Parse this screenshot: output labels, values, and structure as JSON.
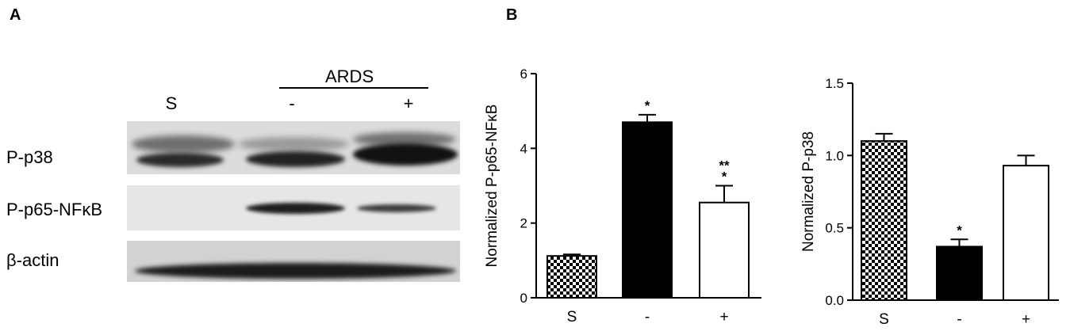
{
  "panels": {
    "a": "A",
    "b": "B"
  },
  "blot": {
    "group_label": "ARDS",
    "lanes": [
      "S",
      "-",
      "+"
    ],
    "rows": [
      "P-p38",
      "P-p65-NFκB",
      "β-actin"
    ]
  },
  "colors": {
    "bar_edge": "#000000",
    "bar_solid": "#000000",
    "bar_empty": "#ffffff"
  },
  "chart_data": [
    {
      "type": "bar",
      "categories": [
        "S",
        "-",
        "+"
      ],
      "values": [
        1.12,
        4.7,
        2.55
      ],
      "errors": [
        0.04,
        0.2,
        0.45
      ],
      "annotations": [
        "",
        "*",
        "**\n*"
      ],
      "fills": [
        "checker",
        "solid",
        "empty"
      ],
      "title": "",
      "xlabel": "",
      "ylabel": "Normalized P-p65-NFκB",
      "ylim": [
        0,
        6
      ],
      "yticks": [
        0,
        2,
        4,
        6
      ],
      "ytick_labels": [
        "0",
        "2",
        "4",
        "6"
      ],
      "grid": false
    },
    {
      "type": "bar",
      "categories": [
        "S",
        "-",
        "+"
      ],
      "values": [
        1.1,
        0.37,
        0.93
      ],
      "errors": [
        0.05,
        0.05,
        0.07
      ],
      "annotations": [
        "",
        "*",
        ""
      ],
      "fills": [
        "checker",
        "solid",
        "empty"
      ],
      "title": "",
      "xlabel": "",
      "ylabel": "Normalized P-p38",
      "ylim": [
        0,
        1.5
      ],
      "yticks": [
        0,
        0.5,
        1.0,
        1.5
      ],
      "ytick_labels": [
        "0.0",
        "0.5",
        "1.0",
        "1.5"
      ],
      "grid": false
    }
  ]
}
